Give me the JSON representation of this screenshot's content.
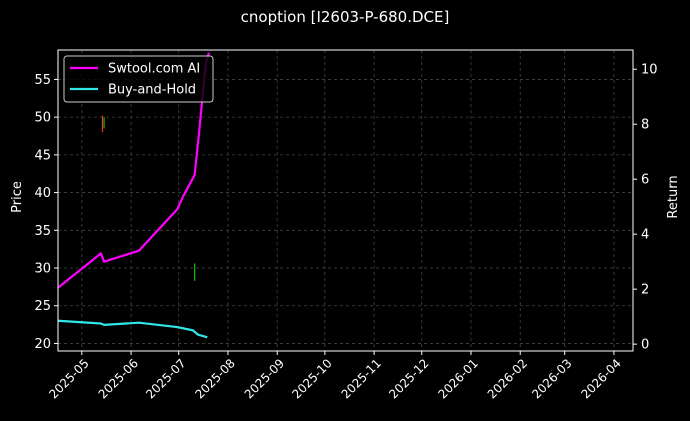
{
  "chart_data": {
    "type": "line",
    "title": "cnoption [I2603-P-680.DCE]",
    "ylabel_left": "Price",
    "ylabel_right": "Return",
    "x_ticks": [
      "2025-05",
      "2025-06",
      "2025-07",
      "2025-08",
      "2025-09",
      "2025-10",
      "2025-11",
      "2025-12",
      "2026-01",
      "2026-02",
      "2026-03",
      "2026-04"
    ],
    "xlim": [
      "2025-04-16",
      "2026-04-13"
    ],
    "y_left_ticks": [
      20,
      25,
      30,
      35,
      40,
      45,
      50,
      55
    ],
    "ylim_left": [
      19.0,
      58.9
    ],
    "y_right_ticks": [
      0,
      2,
      4,
      6,
      8,
      10
    ],
    "ylim_right": [
      -0.25,
      10.7
    ],
    "grid": true,
    "legend_position": "top-left",
    "series": [
      {
        "name": "Swtool.com AI",
        "axis": "right",
        "color": "#ff00ff",
        "points": [
          [
            "2025-04-16",
            2.05
          ],
          [
            "2025-05-13",
            3.3
          ],
          [
            "2025-05-15",
            3.0
          ],
          [
            "2025-06-06",
            3.4
          ],
          [
            "2025-06-30",
            4.9
          ],
          [
            "2025-07-04",
            5.4
          ],
          [
            "2025-07-11",
            6.15
          ],
          [
            "2025-07-14",
            7.8
          ],
          [
            "2025-07-18",
            10.2
          ],
          [
            "2025-07-20",
            10.6
          ]
        ]
      },
      {
        "name": "Buy-and-Hold",
        "axis": "right",
        "color": "#33e6e6",
        "points": [
          [
            "2025-04-16",
            0.85
          ],
          [
            "2025-05-13",
            0.75
          ],
          [
            "2025-05-15",
            0.7
          ],
          [
            "2025-06-06",
            0.78
          ],
          [
            "2025-06-30",
            0.62
          ],
          [
            "2025-07-10",
            0.5
          ],
          [
            "2025-07-13",
            0.35
          ],
          [
            "2025-07-19",
            0.25
          ]
        ]
      }
    ],
    "markers": [
      {
        "date": "2025-05-14",
        "low": 48.0,
        "high": 50.2,
        "color": "#ff3030",
        "axis": "left"
      },
      {
        "date": "2025-05-15",
        "low": 48.5,
        "high": 50.0,
        "color": "#00c000",
        "axis": "left"
      },
      {
        "date": "2025-07-11",
        "low": 28.3,
        "high": 30.6,
        "color": "#00c000",
        "axis": "left"
      }
    ]
  }
}
